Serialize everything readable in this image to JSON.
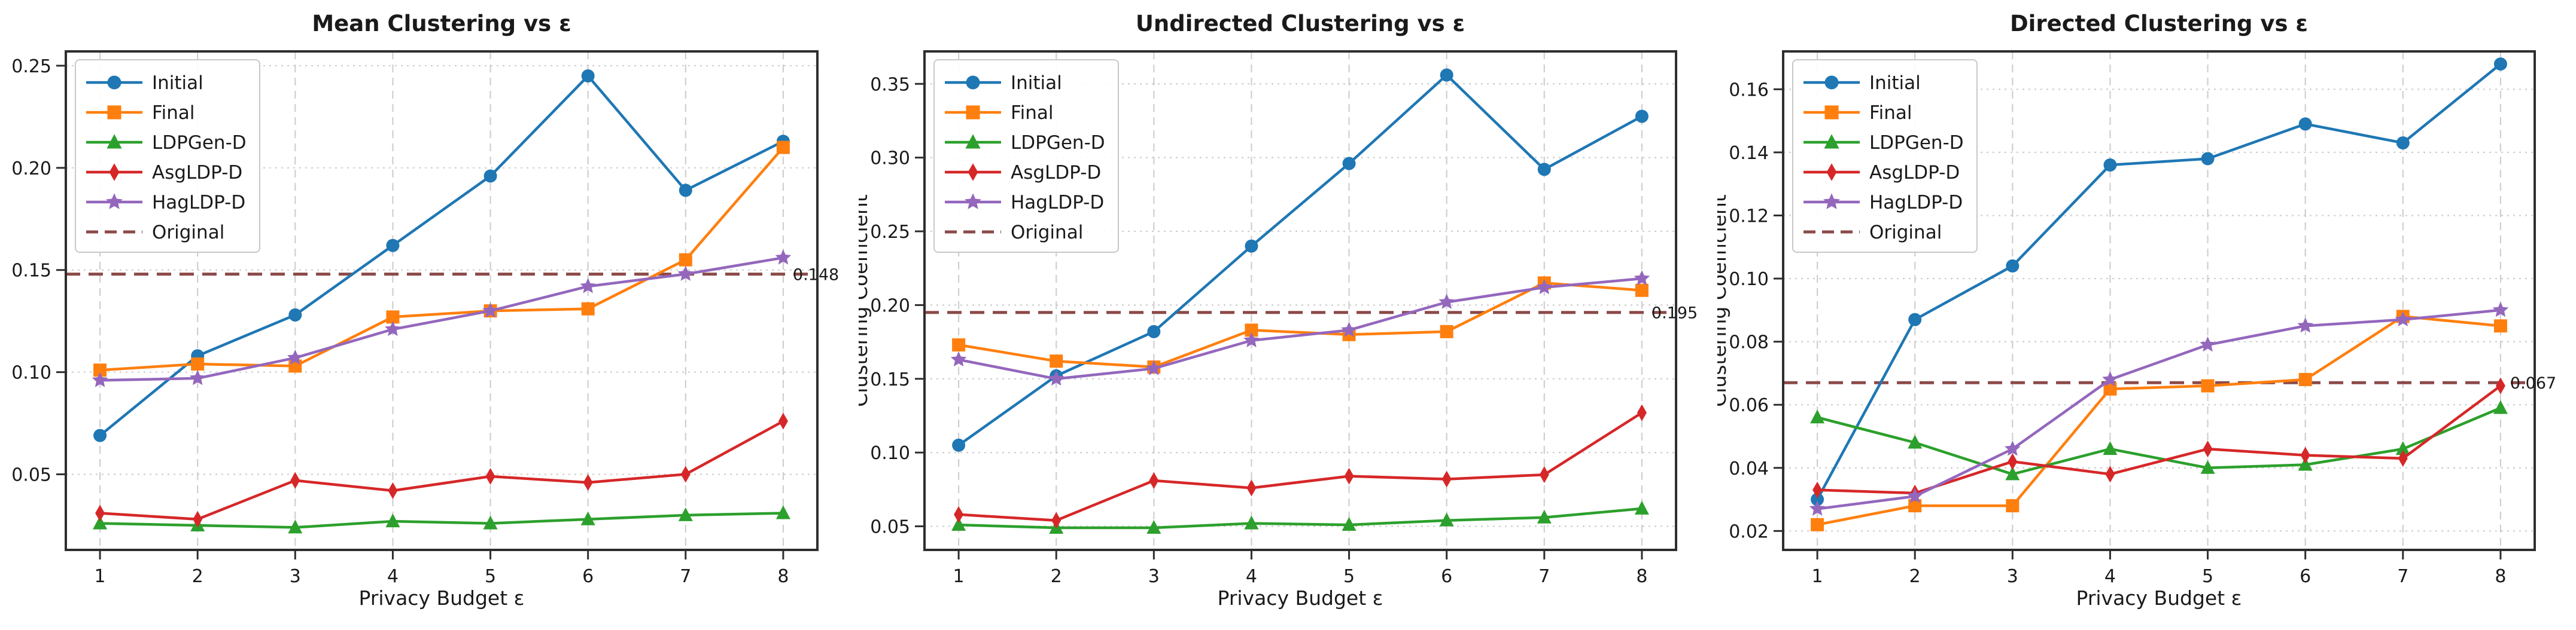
{
  "chart_data": [
    {
      "type": "line",
      "title": "Mean Clustering vs ε",
      "xlabel": "Privacy Budget ε",
      "ylabel": "",
      "x": [
        1,
        2,
        3,
        4,
        5,
        6,
        7,
        8
      ],
      "xtick_labels": [
        "1",
        "2",
        "3",
        "4",
        "5",
        "6",
        "7",
        "8"
      ],
      "yticks": [
        0.05,
        0.1,
        0.15,
        0.2,
        0.25
      ],
      "ytick_labels": [
        "0.05",
        "0.10",
        "0.15",
        "0.20",
        "0.25"
      ],
      "xlim": [
        0.65,
        8.35
      ],
      "ylim": [
        0.013,
        0.257
      ],
      "grid": true,
      "legend_position": "upper-left",
      "series": [
        {
          "name": "Initial",
          "values": [
            0.069,
            0.108,
            0.128,
            0.162,
            0.196,
            0.245,
            0.189,
            0.213
          ]
        },
        {
          "name": "Final",
          "values": [
            0.101,
            0.104,
            0.103,
            0.127,
            0.13,
            0.131,
            0.155,
            0.21
          ]
        },
        {
          "name": "LDPGen-D",
          "values": [
            0.026,
            0.025,
            0.024,
            0.027,
            0.026,
            0.028,
            0.03,
            0.031
          ]
        },
        {
          "name": "AsgLDP-D",
          "values": [
            0.031,
            0.028,
            0.047,
            0.042,
            0.049,
            0.046,
            0.05,
            0.076
          ]
        },
        {
          "name": "HagLDP-D",
          "values": [
            0.096,
            0.097,
            0.107,
            0.121,
            0.13,
            0.142,
            0.148,
            0.156
          ]
        }
      ],
      "original_line": {
        "label": "Original",
        "value": 0.148,
        "annotation": "0.148"
      }
    },
    {
      "type": "line",
      "title": "Undirected Clustering vs ε",
      "xlabel": "Privacy Budget ε",
      "ylabel": "Clustering Coefficient",
      "x": [
        1,
        2,
        3,
        4,
        5,
        6,
        7,
        8
      ],
      "xtick_labels": [
        "1",
        "2",
        "3",
        "4",
        "5",
        "6",
        "7",
        "8"
      ],
      "yticks": [
        0.05,
        0.1,
        0.15,
        0.2,
        0.25,
        0.3,
        0.35
      ],
      "ytick_labels": [
        "0.05",
        "0.10",
        "0.15",
        "0.20",
        "0.25",
        "0.30",
        "0.35"
      ],
      "xlim": [
        0.65,
        8.35
      ],
      "ylim": [
        0.034,
        0.372
      ],
      "grid": true,
      "legend_position": "upper-left",
      "series": [
        {
          "name": "Initial",
          "values": [
            0.105,
            0.152,
            0.182,
            0.24,
            0.296,
            0.356,
            0.292,
            0.328
          ]
        },
        {
          "name": "Final",
          "values": [
            0.173,
            0.162,
            0.158,
            0.183,
            0.18,
            0.182,
            0.215,
            0.21
          ]
        },
        {
          "name": "LDPGen-D",
          "values": [
            0.051,
            0.049,
            0.049,
            0.052,
            0.051,
            0.054,
            0.056,
            0.062
          ]
        },
        {
          "name": "AsgLDP-D",
          "values": [
            0.058,
            0.054,
            0.081,
            0.076,
            0.084,
            0.082,
            0.085,
            0.127
          ]
        },
        {
          "name": "HagLDP-D",
          "values": [
            0.163,
            0.15,
            0.157,
            0.176,
            0.183,
            0.202,
            0.212,
            0.218
          ]
        }
      ],
      "original_line": {
        "label": "Original",
        "value": 0.195,
        "annotation": "0.195"
      }
    },
    {
      "type": "line",
      "title": "Directed Clustering vs ε",
      "xlabel": "Privacy Budget ε",
      "ylabel": "Clustering Coefficient",
      "x": [
        1,
        2,
        3,
        4,
        5,
        6,
        7,
        8
      ],
      "xtick_labels": [
        "1",
        "2",
        "3",
        "4",
        "5",
        "6",
        "7",
        "8"
      ],
      "yticks": [
        0.02,
        0.04,
        0.06,
        0.08,
        0.1,
        0.12,
        0.14,
        0.16
      ],
      "ytick_labels": [
        "0.02",
        "0.04",
        "0.06",
        "0.08",
        "0.10",
        "0.12",
        "0.14",
        "0.16"
      ],
      "xlim": [
        0.65,
        8.35
      ],
      "ylim": [
        0.014,
        0.172
      ],
      "grid": true,
      "legend_position": "upper-left",
      "series": [
        {
          "name": "Initial",
          "values": [
            0.03,
            0.087,
            0.104,
            0.136,
            0.138,
            0.149,
            0.143,
            0.168
          ]
        },
        {
          "name": "Final",
          "values": [
            0.022,
            0.028,
            0.028,
            0.065,
            0.066,
            0.068,
            0.088,
            0.085
          ]
        },
        {
          "name": "LDPGen-D",
          "values": [
            0.056,
            0.048,
            0.038,
            0.046,
            0.04,
            0.041,
            0.046,
            0.059
          ]
        },
        {
          "name": "AsgLDP-D",
          "values": [
            0.033,
            0.032,
            0.042,
            0.038,
            0.046,
            0.044,
            0.043,
            0.066
          ]
        },
        {
          "name": "HagLDP-D",
          "values": [
            0.027,
            0.031,
            0.046,
            0.068,
            0.079,
            0.085,
            0.087,
            0.09
          ]
        }
      ],
      "original_line": {
        "label": "Original",
        "value": 0.067,
        "annotation": "0.067"
      }
    }
  ],
  "style": {
    "legend_labels": [
      "Initial",
      "Final",
      "LDPGen-D",
      "AsgLDP-D",
      "HagLDP-D",
      "Original"
    ],
    "series": {
      "Initial": {
        "color": "#1f77b4",
        "marker": "circle"
      },
      "Final": {
        "color": "#ff7f0e",
        "marker": "square"
      },
      "LDPGen-D": {
        "color": "#2ca02c",
        "marker": "triangle"
      },
      "AsgLDP-D": {
        "color": "#d62728",
        "marker": "thin-diamond"
      },
      "HagLDP-D": {
        "color": "#9467bd",
        "marker": "star"
      },
      "Original": {
        "color": "#8b4a48",
        "marker": "dashed-line"
      }
    },
    "grid_color": "#cfcfcf",
    "spine_color": "#2e2e2e",
    "text_color": "#1a1a1a",
    "background": "#ffffff"
  }
}
